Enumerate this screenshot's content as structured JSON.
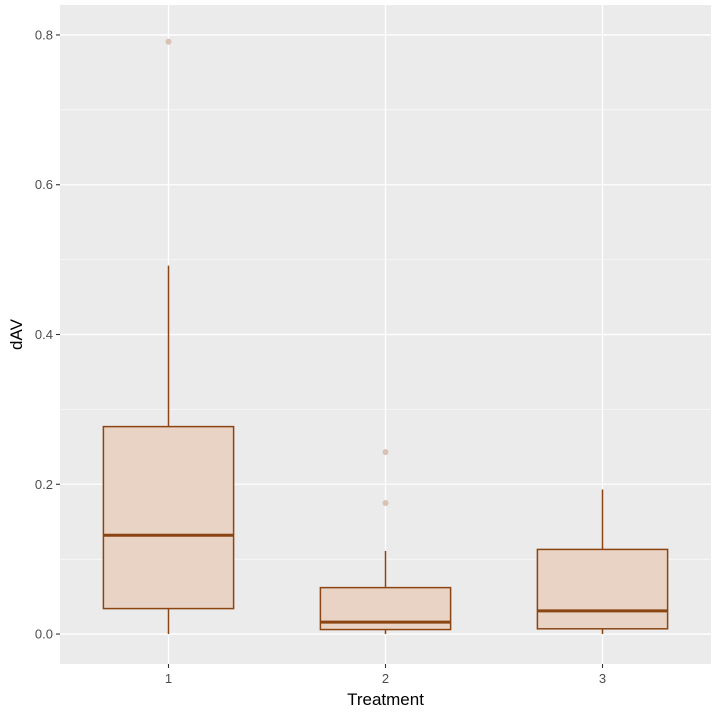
{
  "chart_data": {
    "type": "boxplot",
    "title": "",
    "xlabel": "Treatment",
    "ylabel": "dAV",
    "categories": [
      "1",
      "2",
      "3"
    ],
    "ylim": [
      -0.04,
      0.84
    ],
    "y_ticks": [
      0.0,
      0.2,
      0.4,
      0.6,
      0.8
    ],
    "y_tick_labels": [
      "0.0",
      "0.2",
      "0.4",
      "0.6",
      "0.8"
    ],
    "grid": true,
    "legend": "none",
    "boxes": [
      {
        "category": "1",
        "whisker_low": 0.0,
        "q1": 0.034,
        "median": 0.132,
        "q3": 0.277,
        "whisker_high": 0.492,
        "outliers": [
          0.791
        ]
      },
      {
        "category": "2",
        "whisker_low": 0.0,
        "q1": 0.006,
        "median": 0.016,
        "q3": 0.062,
        "whisker_high": 0.111,
        "outliers": [
          0.175,
          0.243
        ]
      },
      {
        "category": "3",
        "whisker_low": 0.0,
        "q1": 0.007,
        "median": 0.031,
        "q3": 0.113,
        "whisker_high": 0.193,
        "outliers": []
      }
    ],
    "colors": {
      "panel": "#ebebeb",
      "grid_major": "#ffffff",
      "box_fill": "#e8d3c4",
      "box_line": "#8b4513",
      "outlier": "#d9c2b3"
    }
  }
}
